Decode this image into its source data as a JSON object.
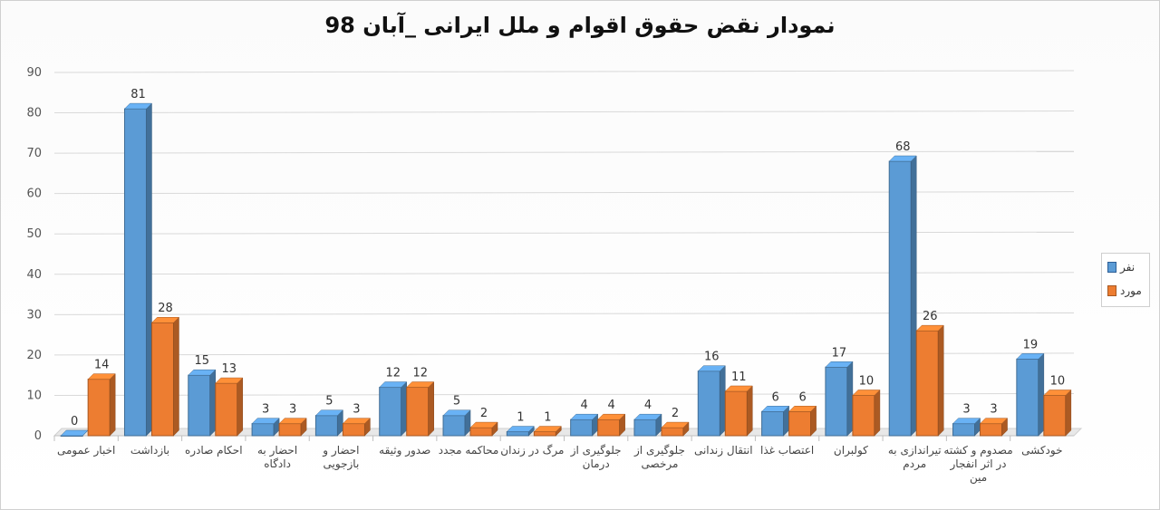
{
  "chart_data": {
    "type": "bar",
    "title": "نمودار نقض حقوق اقوام و ملل ایرانی _آبان 98",
    "xlabel": "",
    "ylabel": "",
    "ylim": [
      0,
      90
    ],
    "yticks": [
      0,
      10,
      20,
      30,
      40,
      50,
      60,
      70,
      80,
      90
    ],
    "grid": true,
    "legend_position": "right",
    "categories": [
      "اخبار عمومی",
      "بازداشت",
      "احکام صادره",
      "احضار به دادگاه",
      "احضار و بازجویی",
      "صدور وثیقه",
      "محاکمه مجدد",
      "مرگ در زندان",
      "جلوگیری از درمان",
      "جلوگیری از مرخصی",
      "انتقال زندانی",
      "اعتصاب غذا",
      "کولبران",
      "تیراندازی به مردم",
      "مصدوم و کشته در اثر انفجار مین",
      "خودکشی"
    ],
    "series": [
      {
        "name": "نفر",
        "color": "#5b9bd5",
        "values": [
          0,
          81,
          15,
          3,
          5,
          12,
          5,
          1,
          4,
          4,
          16,
          6,
          17,
          68,
          3,
          19
        ]
      },
      {
        "name": "مورد",
        "color": "#ed7d31",
        "values": [
          14,
          28,
          13,
          3,
          3,
          12,
          2,
          1,
          4,
          2,
          11,
          6,
          10,
          26,
          3,
          10
        ]
      }
    ]
  }
}
